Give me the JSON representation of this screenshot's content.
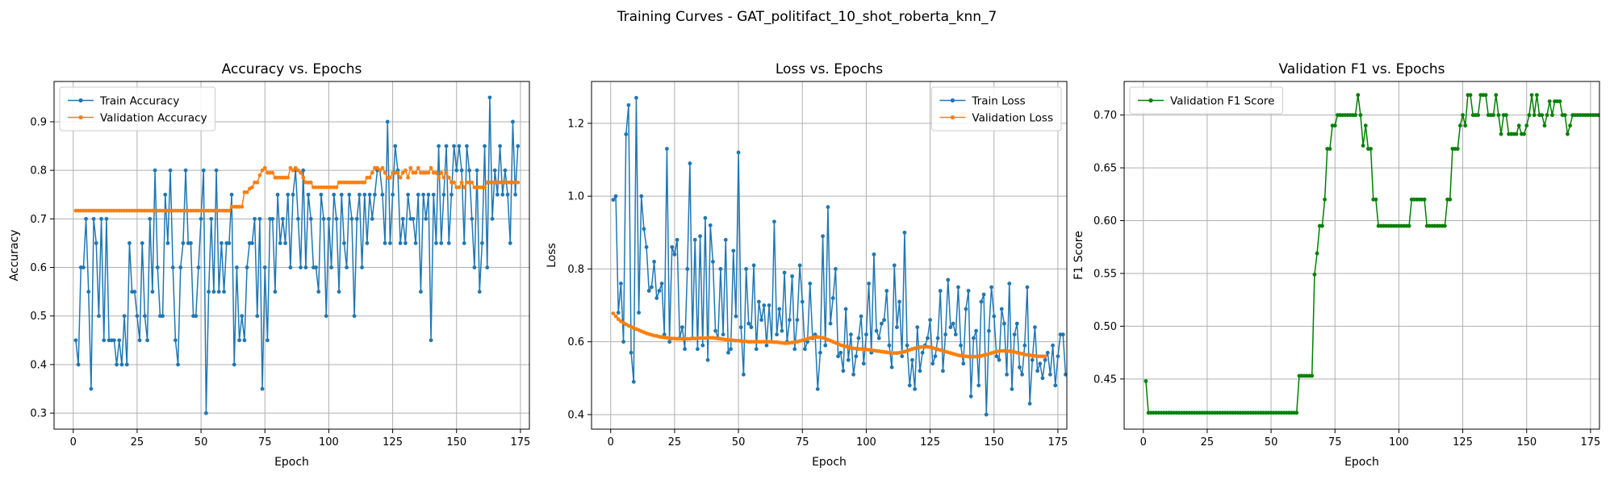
{
  "figure": {
    "suptitle": "Training Curves - GAT_politifact_10_shot_roberta_knn_7"
  },
  "chart_data": [
    {
      "type": "line",
      "title": "Accuracy vs. Epochs",
      "xlabel": "Epoch",
      "ylabel": "Accuracy",
      "xlim": [
        -7.5,
        178.5
      ],
      "ylim": [
        0.267,
        0.983
      ],
      "xticks": [
        0,
        25,
        50,
        75,
        100,
        125,
        150,
        175
      ],
      "yticks": [
        0.3,
        0.4,
        0.5,
        0.6,
        0.7,
        0.8,
        0.9
      ],
      "yformat": "1",
      "grid": true,
      "legend_position": "upper left",
      "series": [
        {
          "name": "Train Accuracy",
          "color": "#1f77b4",
          "x_start": 1,
          "values": [
            0.45,
            0.4,
            0.6,
            0.6,
            0.7,
            0.55,
            0.35,
            0.7,
            0.65,
            0.5,
            0.7,
            0.45,
            0.7,
            0.45,
            0.45,
            0.45,
            0.4,
            0.45,
            0.4,
            0.5,
            0.4,
            0.65,
            0.55,
            0.55,
            0.5,
            0.45,
            0.65,
            0.5,
            0.45,
            0.7,
            0.55,
            0.8,
            0.6,
            0.5,
            0.5,
            0.75,
            0.65,
            0.8,
            0.6,
            0.45,
            0.4,
            0.6,
            0.65,
            0.8,
            0.65,
            0.65,
            0.5,
            0.5,
            0.6,
            0.7,
            0.8,
            0.3,
            0.55,
            0.7,
            0.55,
            0.8,
            0.55,
            0.65,
            0.55,
            0.65,
            0.65,
            0.75,
            0.4,
            0.6,
            0.45,
            0.5,
            0.45,
            0.6,
            0.65,
            0.65,
            0.7,
            0.5,
            0.7,
            0.35,
            0.6,
            0.45,
            0.7,
            0.7,
            0.55,
            0.75,
            0.65,
            0.7,
            0.65,
            0.75,
            0.6,
            0.75,
            0.8,
            0.7,
            0.6,
            0.8,
            0.6,
            0.75,
            0.7,
            0.6,
            0.6,
            0.55,
            0.75,
            0.7,
            0.5,
            0.7,
            0.6,
            0.75,
            0.7,
            0.55,
            0.75,
            0.65,
            0.6,
            0.75,
            0.7,
            0.5,
            0.7,
            0.75,
            0.6,
            0.75,
            0.65,
            0.75,
            0.7,
            0.75,
            0.8,
            0.8,
            0.75,
            0.65,
            0.9,
            0.65,
            0.75,
            0.85,
            0.8,
            0.65,
            0.7,
            0.65,
            0.75,
            0.7,
            0.7,
            0.65,
            0.75,
            0.55,
            0.75,
            0.7,
            0.75,
            0.45,
            0.75,
            0.65,
            0.85,
            0.65,
            0.75,
            0.85,
            0.65,
            0.75,
            0.85,
            0.8,
            0.85,
            0.8,
            0.65,
            0.85,
            0.8,
            0.7,
            0.6,
            0.8,
            0.55,
            0.65,
            0.85,
            0.6,
            0.95,
            0.7,
            0.8,
            0.75,
            0.85,
            0.75,
            0.8,
            0.75,
            0.65,
            0.9,
            0.75,
            0.85
          ]
        },
        {
          "name": "Validation Accuracy",
          "color": "#ff7f0e",
          "x_start": 1,
          "values": [
            0.717,
            0.717,
            0.717,
            0.717,
            0.717,
            0.717,
            0.717,
            0.717,
            0.717,
            0.717,
            0.717,
            0.717,
            0.717,
            0.717,
            0.717,
            0.717,
            0.717,
            0.717,
            0.717,
            0.717,
            0.717,
            0.717,
            0.717,
            0.717,
            0.717,
            0.717,
            0.717,
            0.717,
            0.717,
            0.717,
            0.717,
            0.717,
            0.717,
            0.717,
            0.717,
            0.717,
            0.717,
            0.717,
            0.717,
            0.717,
            0.717,
            0.717,
            0.717,
            0.717,
            0.717,
            0.717,
            0.717,
            0.717,
            0.717,
            0.717,
            0.717,
            0.717,
            0.717,
            0.717,
            0.717,
            0.717,
            0.717,
            0.717,
            0.717,
            0.717,
            0.717,
            0.725,
            0.725,
            0.725,
            0.725,
            0.725,
            0.755,
            0.755,
            0.762,
            0.765,
            0.775,
            0.775,
            0.79,
            0.8,
            0.805,
            0.795,
            0.795,
            0.795,
            0.785,
            0.785,
            0.785,
            0.785,
            0.785,
            0.785,
            0.805,
            0.8,
            0.805,
            0.8,
            0.795,
            0.785,
            0.775,
            0.775,
            0.775,
            0.765,
            0.765,
            0.765,
            0.765,
            0.765,
            0.765,
            0.765,
            0.765,
            0.765,
            0.765,
            0.775,
            0.775,
            0.775,
            0.775,
            0.775,
            0.775,
            0.775,
            0.775,
            0.775,
            0.775,
            0.775,
            0.785,
            0.785,
            0.795,
            0.805,
            0.805,
            0.8,
            0.805,
            0.795,
            0.785,
            0.785,
            0.795,
            0.795,
            0.795,
            0.785,
            0.795,
            0.8,
            0.785,
            0.805,
            0.795,
            0.795,
            0.805,
            0.795,
            0.795,
            0.795,
            0.795,
            0.805,
            0.795,
            0.795,
            0.785,
            0.795,
            0.785,
            0.795,
            0.785,
            0.775,
            0.775,
            0.765,
            0.765,
            0.775,
            0.765,
            0.775,
            0.775,
            0.775,
            0.765,
            0.765,
            0.765,
            0.765,
            0.765,
            0.775,
            0.775,
            0.775,
            0.775,
            0.775,
            0.775,
            0.775,
            0.775,
            0.775,
            0.775,
            0.775,
            0.775,
            0.775
          ]
        }
      ]
    },
    {
      "type": "line",
      "title": "Loss vs. Epochs",
      "xlabel": "Epoch",
      "ylabel": "Loss",
      "xlim": [
        -7.5,
        178.5
      ],
      "ylim": [
        0.36,
        1.315
      ],
      "xticks": [
        0,
        25,
        50,
        75,
        100,
        125,
        150,
        175
      ],
      "yticks": [
        0.4,
        0.6,
        0.8,
        1.0,
        1.2
      ],
      "yformat": "1",
      "grid": true,
      "legend_position": "upper right",
      "series": [
        {
          "name": "Train Loss",
          "color": "#1f77b4",
          "x_start": 1,
          "values": [
            0.99,
            1.0,
            0.68,
            0.76,
            0.6,
            1.17,
            1.25,
            0.57,
            0.49,
            1.27,
            0.68,
            1.0,
            0.91,
            0.86,
            0.74,
            0.75,
            0.82,
            0.72,
            0.74,
            0.76,
            0.62,
            1.13,
            0.6,
            0.86,
            0.84,
            0.88,
            0.61,
            0.64,
            0.58,
            0.8,
            1.09,
            0.61,
            0.88,
            0.58,
            0.89,
            0.59,
            0.94,
            0.55,
            0.92,
            0.82,
            0.63,
            0.61,
            0.8,
            0.62,
            0.88,
            0.57,
            0.58,
            0.85,
            0.67,
            1.12,
            0.64,
            0.51,
            0.8,
            0.65,
            0.64,
            0.81,
            0.58,
            0.71,
            0.66,
            0.7,
            0.59,
            0.7,
            0.6,
            0.93,
            0.62,
            0.69,
            0.63,
            0.79,
            0.6,
            0.66,
            0.78,
            0.58,
            0.66,
            0.81,
            0.71,
            0.58,
            0.6,
            0.76,
            0.61,
            0.62,
            0.47,
            0.57,
            0.89,
            0.59,
            0.97,
            0.65,
            0.72,
            0.8,
            0.56,
            0.57,
            0.52,
            0.69,
            0.55,
            0.62,
            0.51,
            0.56,
            0.61,
            0.67,
            0.54,
            0.62,
            0.76,
            0.57,
            0.84,
            0.63,
            0.61,
            0.65,
            0.66,
            0.74,
            0.59,
            0.53,
            0.81,
            0.64,
            0.71,
            0.56,
            0.9,
            0.59,
            0.48,
            0.55,
            0.47,
            0.64,
            0.52,
            0.57,
            0.59,
            0.61,
            0.66,
            0.54,
            0.56,
            0.61,
            0.74,
            0.52,
            0.62,
            0.77,
            0.64,
            0.65,
            0.62,
            0.75,
            0.59,
            0.54,
            0.69,
            0.74,
            0.45,
            0.61,
            0.63,
            0.48,
            0.71,
            0.73,
            0.4,
            0.63,
            0.75,
            0.67,
            0.56,
            0.55,
            0.69,
            0.65,
            0.51,
            0.76,
            0.47,
            0.62,
            0.65,
            0.53,
            0.51,
            0.59,
            0.75,
            0.43,
            0.55,
            0.64,
            0.52,
            0.54,
            0.5,
            0.55,
            0.57,
            0.51,
            0.59,
            0.48,
            0.56,
            0.62,
            0.62,
            0.51
          ]
        },
        {
          "name": "Validation Loss",
          "color": "#ff7f0e",
          "x_start": 1,
          "values": [
            0.678,
            0.67,
            0.662,
            0.656,
            0.652,
            0.648,
            0.644,
            0.641,
            0.638,
            0.635,
            0.632,
            0.629,
            0.626,
            0.623,
            0.621,
            0.619,
            0.617,
            0.616,
            0.614,
            0.613,
            0.612,
            0.611,
            0.61,
            0.609,
            0.609,
            0.608,
            0.608,
            0.608,
            0.608,
            0.608,
            0.608,
            0.609,
            0.609,
            0.61,
            0.61,
            0.61,
            0.61,
            0.611,
            0.611,
            0.611,
            0.61,
            0.609,
            0.608,
            0.607,
            0.606,
            0.605,
            0.605,
            0.604,
            0.603,
            0.603,
            0.602,
            0.601,
            0.601,
            0.6,
            0.6,
            0.6,
            0.6,
            0.6,
            0.6,
            0.6,
            0.6,
            0.6,
            0.6,
            0.599,
            0.599,
            0.598,
            0.597,
            0.596,
            0.596,
            0.597,
            0.598,
            0.599,
            0.6,
            0.602,
            0.604,
            0.606,
            0.608,
            0.61,
            0.612,
            0.613,
            0.613,
            0.612,
            0.611,
            0.609,
            0.606,
            0.603,
            0.6,
            0.597,
            0.594,
            0.591,
            0.589,
            0.587,
            0.585,
            0.583,
            0.582,
            0.581,
            0.58,
            0.58,
            0.579,
            0.579,
            0.578,
            0.577,
            0.576,
            0.575,
            0.574,
            0.573,
            0.572,
            0.571,
            0.57,
            0.569,
            0.569,
            0.569,
            0.57,
            0.571,
            0.573,
            0.575,
            0.578,
            0.58,
            0.582,
            0.584,
            0.585,
            0.586,
            0.586,
            0.586,
            0.585,
            0.583,
            0.581,
            0.579,
            0.577,
            0.575,
            0.573,
            0.571,
            0.569,
            0.567,
            0.565,
            0.563,
            0.562,
            0.561,
            0.56,
            0.559,
            0.559,
            0.559,
            0.559,
            0.56,
            0.561,
            0.563,
            0.565,
            0.567,
            0.569,
            0.571,
            0.573,
            0.574,
            0.575,
            0.575,
            0.575,
            0.574,
            0.573,
            0.572,
            0.57,
            0.568,
            0.567,
            0.565,
            0.564,
            0.563,
            0.562,
            0.561,
            0.56,
            0.56,
            0.56,
            0.56
          ]
        }
      ]
    },
    {
      "type": "line",
      "title": "Validation F1 vs. Epochs",
      "xlabel": "Epoch",
      "ylabel": "F1 Score",
      "xlim": [
        -7.5,
        178.5
      ],
      "ylim": [
        0.4025,
        0.7318
      ],
      "xticks": [
        0,
        25,
        50,
        75,
        100,
        125,
        150,
        175
      ],
      "yticks": [
        0.45,
        0.5,
        0.55,
        0.6,
        0.65,
        0.7
      ],
      "yformat": "2",
      "grid": true,
      "legend_position": "upper left",
      "series": [
        {
          "name": "Validation F1 Score",
          "color": "#008000",
          "x_start": 1,
          "values": [
            0.448,
            0.418,
            0.418,
            0.418,
            0.418,
            0.418,
            0.418,
            0.418,
            0.418,
            0.418,
            0.418,
            0.418,
            0.418,
            0.418,
            0.418,
            0.418,
            0.418,
            0.418,
            0.418,
            0.418,
            0.418,
            0.418,
            0.418,
            0.418,
            0.418,
            0.418,
            0.418,
            0.418,
            0.418,
            0.418,
            0.418,
            0.418,
            0.418,
            0.418,
            0.418,
            0.418,
            0.418,
            0.418,
            0.418,
            0.418,
            0.418,
            0.418,
            0.418,
            0.418,
            0.418,
            0.418,
            0.418,
            0.418,
            0.418,
            0.418,
            0.418,
            0.418,
            0.418,
            0.418,
            0.418,
            0.418,
            0.418,
            0.418,
            0.418,
            0.418,
            0.453,
            0.453,
            0.453,
            0.453,
            0.453,
            0.453,
            0.549,
            0.569,
            0.595,
            0.595,
            0.62,
            0.668,
            0.668,
            0.69,
            0.69,
            0.7,
            0.7,
            0.7,
            0.7,
            0.7,
            0.7,
            0.7,
            0.7,
            0.719,
            0.7,
            0.671,
            0.69,
            0.668,
            0.668,
            0.62,
            0.62,
            0.595,
            0.595,
            0.595,
            0.595,
            0.595,
            0.595,
            0.595,
            0.595,
            0.595,
            0.595,
            0.595,
            0.595,
            0.595,
            0.62,
            0.62,
            0.62,
            0.62,
            0.62,
            0.62,
            0.595,
            0.595,
            0.595,
            0.595,
            0.595,
            0.595,
            0.595,
            0.595,
            0.62,
            0.62,
            0.668,
            0.668,
            0.668,
            0.69,
            0.7,
            0.69,
            0.719,
            0.719,
            0.7,
            0.7,
            0.7,
            0.719,
            0.719,
            0.719,
            0.7,
            0.7,
            0.7,
            0.719,
            0.7,
            0.682,
            0.7,
            0.7,
            0.682,
            0.682,
            0.682,
            0.682,
            0.69,
            0.682,
            0.682,
            0.69,
            0.7,
            0.719,
            0.7,
            0.719,
            0.7,
            0.7,
            0.69,
            0.7,
            0.713,
            0.7,
            0.713,
            0.713,
            0.713,
            0.7,
            0.7,
            0.682,
            0.69,
            0.7,
            0.7,
            0.7,
            0.7,
            0.7,
            0.7,
            0.7,
            0.7,
            0.7,
            0.7,
            0.7,
            0.7
          ]
        }
      ]
    }
  ]
}
